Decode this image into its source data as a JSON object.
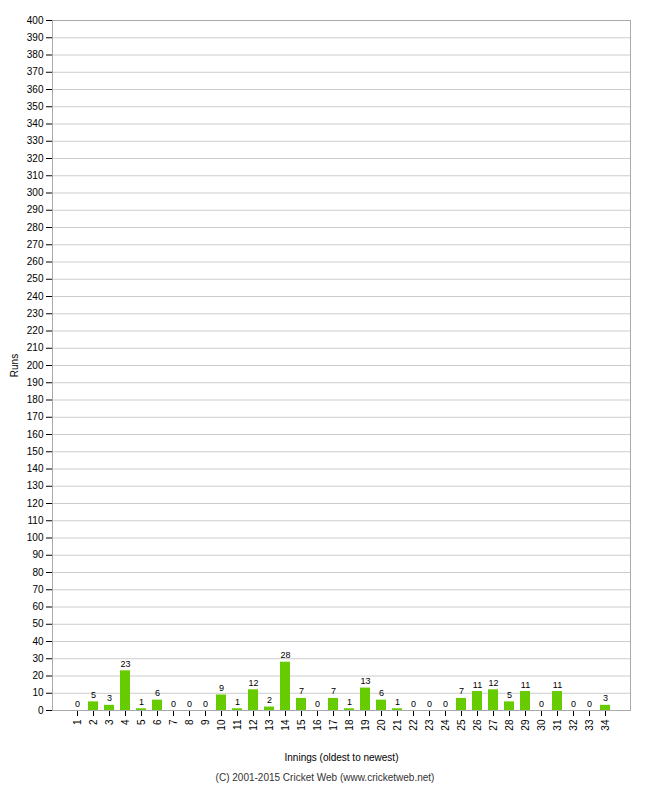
{
  "chart_data": {
    "type": "bar",
    "categories": [
      1,
      2,
      3,
      4,
      5,
      6,
      7,
      8,
      9,
      10,
      11,
      12,
      13,
      14,
      15,
      16,
      17,
      18,
      19,
      20,
      21,
      22,
      23,
      24,
      25,
      26,
      27,
      28,
      29,
      30,
      31,
      32,
      33,
      34
    ],
    "values": [
      0,
      5,
      3,
      23,
      1,
      6,
      0,
      0,
      0,
      9,
      1,
      12,
      2,
      28,
      7,
      0,
      7,
      1,
      13,
      6,
      1,
      0,
      0,
      0,
      7,
      11,
      12,
      5,
      11,
      0,
      11,
      0,
      0,
      3
    ],
    "color": "#66cc00",
    "xlabel": "Innings (oldest to newest)",
    "ylabel": "Runs",
    "ylim": [
      0,
      400
    ],
    "yticks": [
      0,
      10,
      20,
      30,
      40,
      50,
      60,
      70,
      80,
      90,
      100,
      110,
      120,
      130,
      140,
      150,
      160,
      170,
      180,
      190,
      200,
      210,
      220,
      230,
      240,
      250,
      260,
      270,
      280,
      290,
      300,
      310,
      320,
      330,
      340,
      350,
      360,
      370,
      380,
      390,
      400
    ],
    "grid": true,
    "data_labels": true,
    "caption": "(C) 2001-2015 Cricket Web (www.cricketweb.net)"
  }
}
